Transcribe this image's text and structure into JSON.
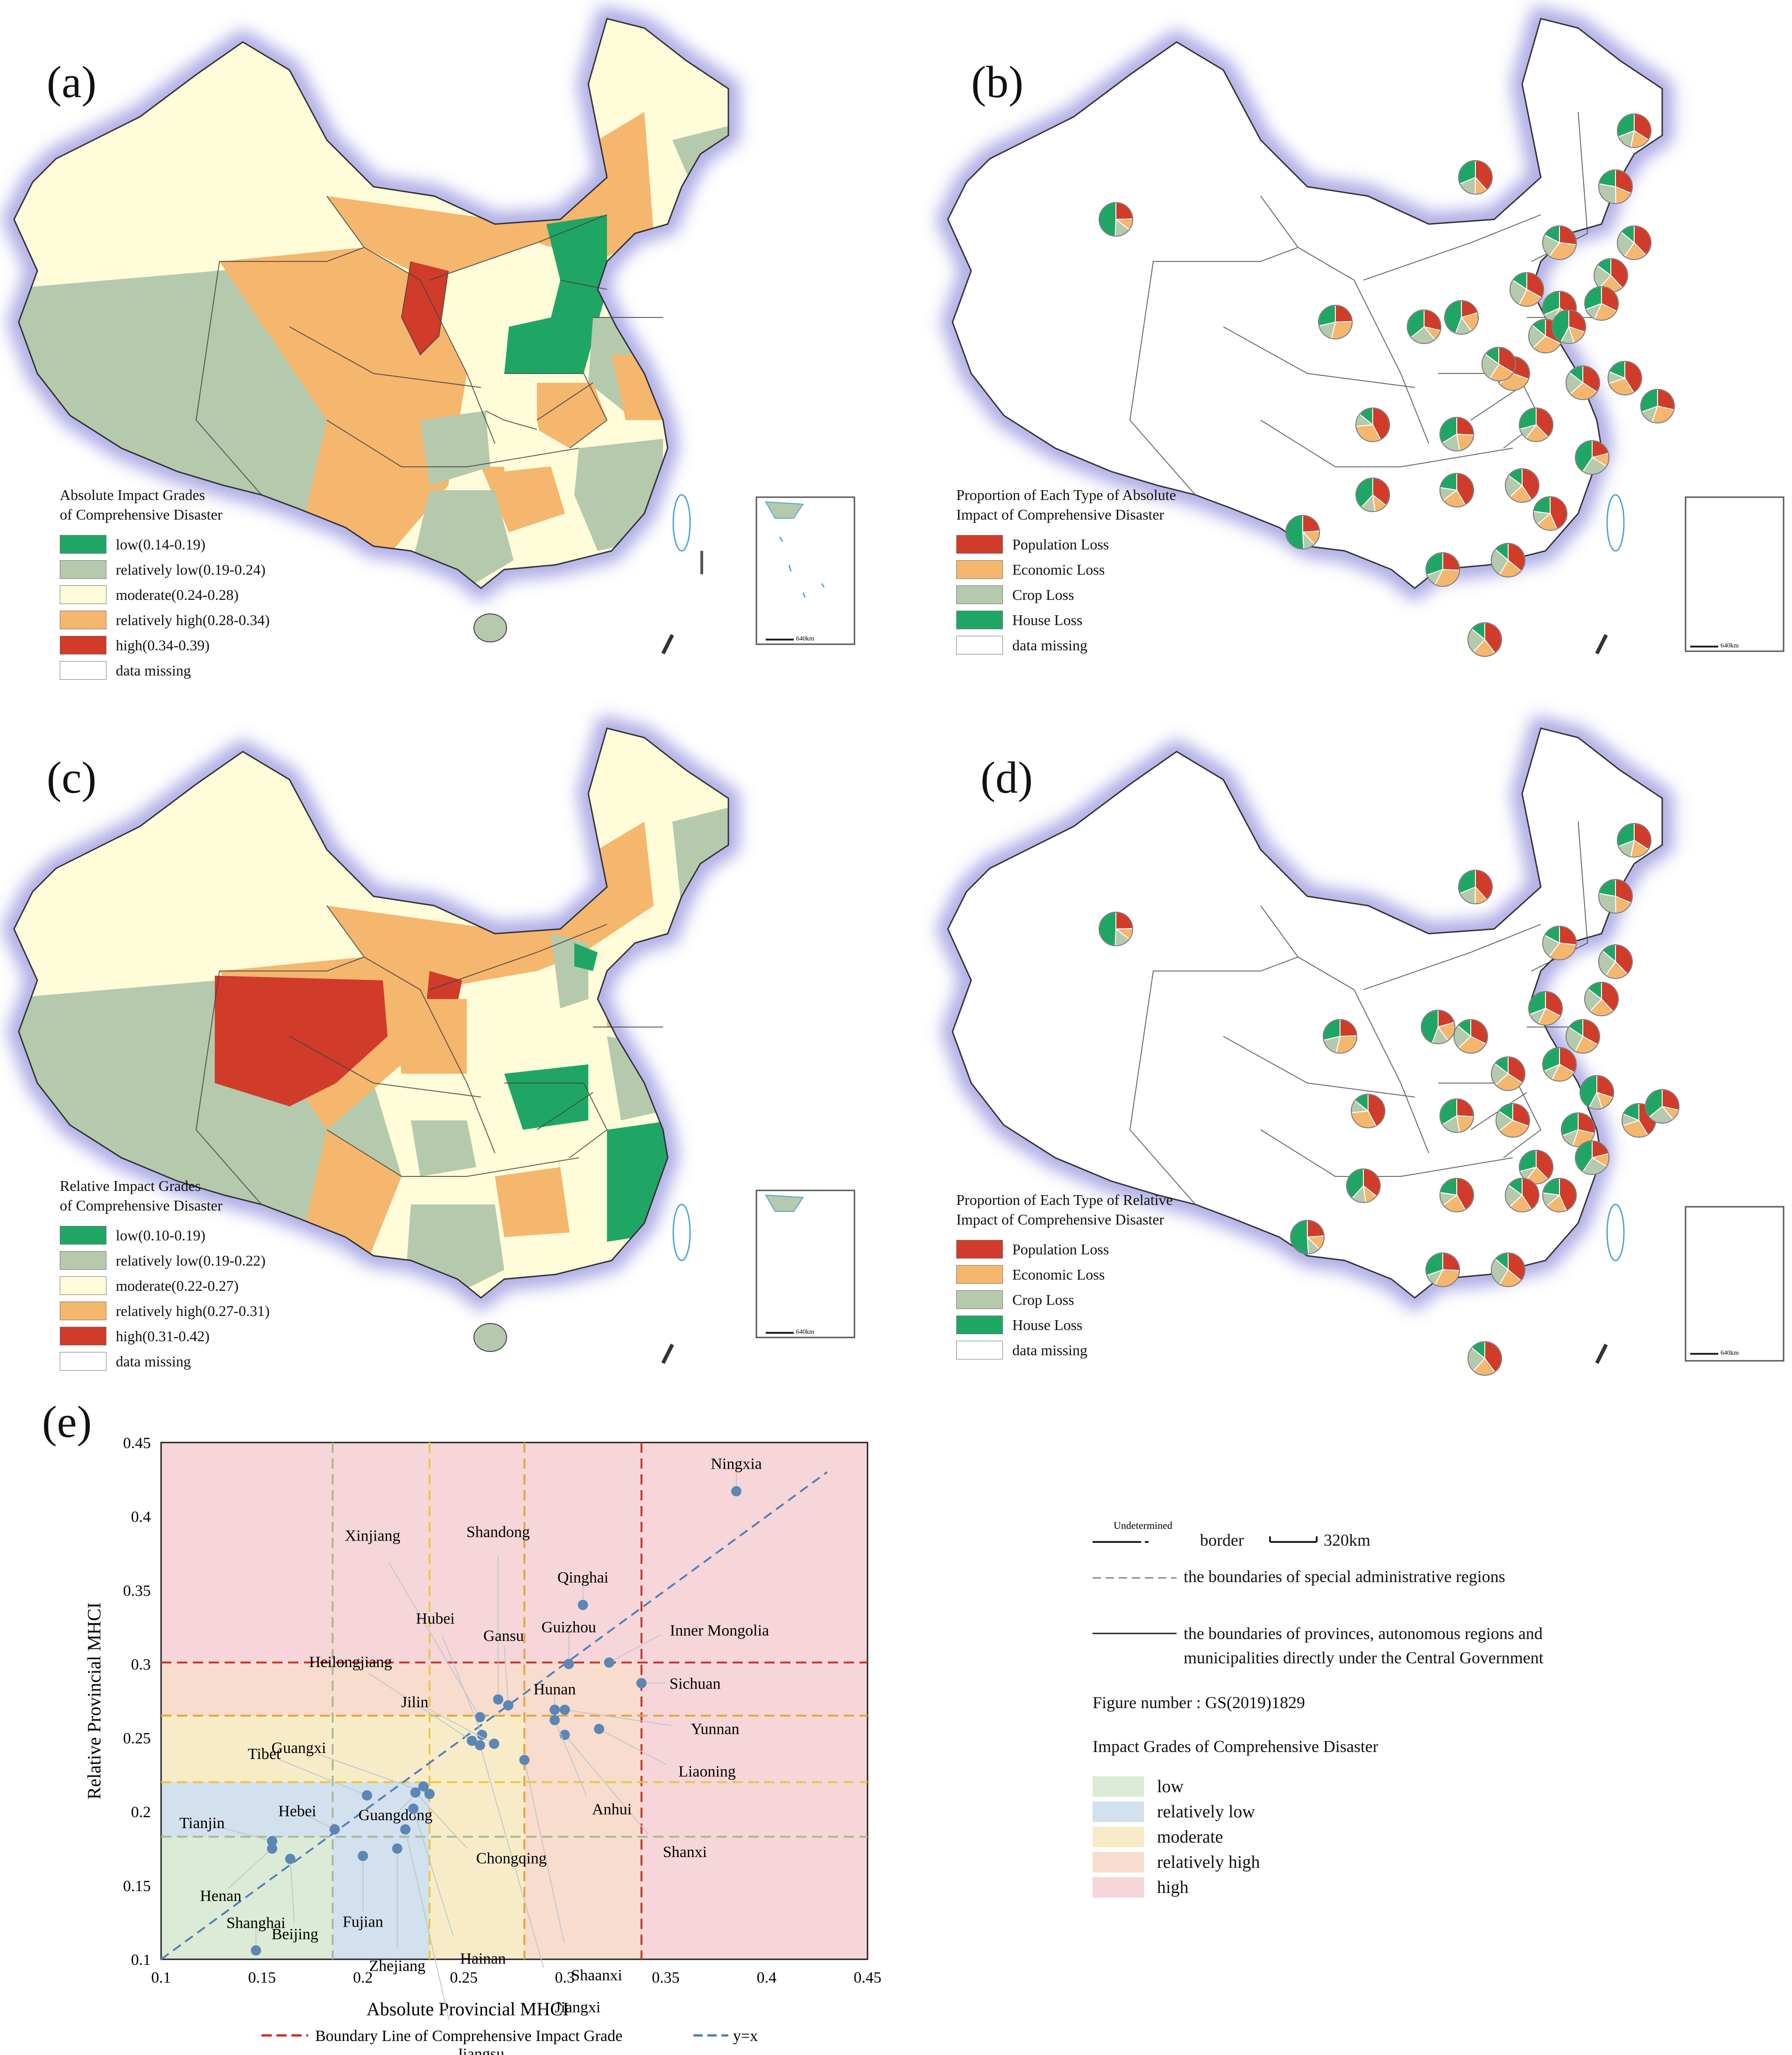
{
  "panels": {
    "a": {
      "label": "(a)",
      "legend_title": "Absolute Impact Grades\nof Comprehensive Disaster",
      "legend": [
        {
          "label": "low(0.14-0.19)",
          "color": "#1fa665"
        },
        {
          "label": "relatively low(0.19-0.24)",
          "color": "#b5c9ad"
        },
        {
          "label": "moderate(0.24-0.28)",
          "color": "#fefcd9"
        },
        {
          "label": "relatively high(0.28-0.34)",
          "color": "#f5b66e"
        },
        {
          "label": "high(0.34-0.39)",
          "color": "#d03b2a"
        },
        {
          "label": "data missing",
          "color": "#ffffff"
        }
      ]
    },
    "b": {
      "label": "(b)",
      "legend_title": "Proportion of Each Type of Absolute\nImpact of Comprehensive Disaster",
      "legend": [
        {
          "label": "Population Loss",
          "color": "#d03b2a"
        },
        {
          "label": "Economic Loss",
          "color": "#f5b66e"
        },
        {
          "label": "Crop Loss",
          "color": "#b5c9ad"
        },
        {
          "label": "House Loss",
          "color": "#1fa665"
        },
        {
          "label": "data missing",
          "color": "#ffffff"
        }
      ]
    },
    "c": {
      "label": "(c)",
      "legend_title": "Relative Impact Grades\nof Comprehensive Disaster",
      "legend": [
        {
          "label": "low(0.10-0.19)",
          "color": "#1fa665"
        },
        {
          "label": "relatively low(0.19-0.22)",
          "color": "#b5c9ad"
        },
        {
          "label": "moderate(0.22-0.27)",
          "color": "#fefcd9"
        },
        {
          "label": "relatively high(0.27-0.31)",
          "color": "#f5b66e"
        },
        {
          "label": "high(0.31-0.42)",
          "color": "#d03b2a"
        },
        {
          "label": "data missing",
          "color": "#ffffff"
        }
      ]
    },
    "d": {
      "label": "(d)",
      "legend_title": "Proportion of Each Type of Relative\nImpact of Comprehensive Disaster",
      "legend": [
        {
          "label": "Population Loss",
          "color": "#d03b2a"
        },
        {
          "label": "Economic Loss",
          "color": "#f5b66e"
        },
        {
          "label": "Crop Loss",
          "color": "#b5c9ad"
        },
        {
          "label": "House Loss",
          "color": "#1fa665"
        },
        {
          "label": "data missing",
          "color": "#ffffff"
        }
      ]
    },
    "inset_scale": "640km"
  },
  "chart_data": {
    "label": "(e)",
    "type": "scatter",
    "xlabel": "Absolute Provincial MHCI",
    "ylabel": "Relative Provincial MHCI",
    "xlim": [
      0.1,
      0.45
    ],
    "ylim": [
      0.1,
      0.45
    ],
    "xticks": [
      "0.1",
      "0.15",
      "0.2",
      "0.25",
      "0.3",
      "0.35",
      "0.4",
      "0.45"
    ],
    "yticks": [
      "0.1",
      "0.15",
      "0.2",
      "0.25",
      "0.3",
      "0.35",
      "0.4",
      "0.45"
    ],
    "abs_boundaries": [
      0.185,
      0.233,
      0.28,
      0.338
    ],
    "rel_boundaries": [
      0.183,
      0.22,
      0.265,
      0.301
    ],
    "bands": [
      {
        "name": "low",
        "color": "#dcebd5"
      },
      {
        "name": "relatively low",
        "color": "#d3e0ee"
      },
      {
        "name": "moderate",
        "color": "#f8ecc8"
      },
      {
        "name": "relatively high",
        "color": "#f8dccd"
      },
      {
        "name": "high",
        "color": "#f6d6d8"
      }
    ],
    "boundary_colors": [
      "#a8b895",
      "#e8c93a",
      "#e8a33a",
      "#c8342b"
    ],
    "points": [
      {
        "name": "Ningxia",
        "x": 0.385,
        "y": 0.417
      },
      {
        "name": "Qinghai",
        "x": 0.309,
        "y": 0.34
      },
      {
        "name": "Inner Mongolia",
        "x": 0.322,
        "y": 0.301
      },
      {
        "name": "Guizhou",
        "x": 0.302,
        "y": 0.3
      },
      {
        "name": "Sichuan",
        "x": 0.338,
        "y": 0.287
      },
      {
        "name": "Shandong",
        "x": 0.267,
        "y": 0.276
      },
      {
        "name": "Gansu",
        "x": 0.272,
        "y": 0.272
      },
      {
        "name": "Hunan",
        "x": 0.295,
        "y": 0.269
      },
      {
        "name": "Yunnan",
        "x": 0.3,
        "y": 0.269
      },
      {
        "name": "Liaoning",
        "x": 0.317,
        "y": 0.256
      },
      {
        "name": "Xinjiang",
        "x": 0.258,
        "y": 0.264
      },
      {
        "name": "Hubei",
        "x": 0.259,
        "y": 0.252
      },
      {
        "name": "Heilongjiang",
        "x": 0.254,
        "y": 0.248
      },
      {
        "name": "Jilin",
        "x": 0.265,
        "y": 0.246
      },
      {
        "name": "Shanxi",
        "x": 0.3,
        "y": 0.252
      },
      {
        "name": "Anhui",
        "x": 0.295,
        "y": 0.262
      },
      {
        "name": "Shaanxi",
        "x": 0.28,
        "y": 0.235
      },
      {
        "name": "Jiangxi",
        "x": 0.258,
        "y": 0.245
      },
      {
        "name": "Guangdong",
        "x": 0.23,
        "y": 0.217
      },
      {
        "name": "Guangxi",
        "x": 0.233,
        "y": 0.212
      },
      {
        "name": "Tibet",
        "x": 0.202,
        "y": 0.211
      },
      {
        "name": "Chongqing",
        "x": 0.226,
        "y": 0.213
      },
      {
        "name": "Hainan",
        "x": 0.225,
        "y": 0.202
      },
      {
        "name": "Jiangsu",
        "x": 0.221,
        "y": 0.188
      },
      {
        "name": "Hebei",
        "x": 0.186,
        "y": 0.188
      },
      {
        "name": "Tianjin",
        "x": 0.155,
        "y": 0.18
      },
      {
        "name": "Henan",
        "x": 0.155,
        "y": 0.175
      },
      {
        "name": "Beijing",
        "x": 0.164,
        "y": 0.168
      },
      {
        "name": "Fujian",
        "x": 0.2,
        "y": 0.17
      },
      {
        "name": "Zhejiang",
        "x": 0.217,
        "y": 0.175
      },
      {
        "name": "Shanghai",
        "x": 0.147,
        "y": 0.106
      }
    ],
    "legend": [
      {
        "label": "Boundary Line of Comprehensive Impact Grade",
        "color": "#c8342b"
      },
      {
        "label": "y=x",
        "color": "#4f81bd"
      }
    ]
  },
  "notes": {
    "border_label": "border",
    "undetermined": "Undetermined",
    "scale": "320km",
    "sar": "the boundaries of special administrative regions",
    "provinces": "the boundaries of provinces, autonomous regions and",
    "provinces2": "municipalities directly under the Central Government",
    "figure_number": "Figure number : GS(2019)1829",
    "grades_title": "Impact Grades of Comprehensive Disaster",
    "grades": [
      {
        "label": "low",
        "color": "#dcebd5"
      },
      {
        "label": "relatively low",
        "color": "#d3e0ee"
      },
      {
        "label": "moderate",
        "color": "#f8ecc8"
      },
      {
        "label": "relatively high",
        "color": "#f8dccd"
      },
      {
        "label": "high",
        "color": "#f6d6d8"
      }
    ]
  }
}
